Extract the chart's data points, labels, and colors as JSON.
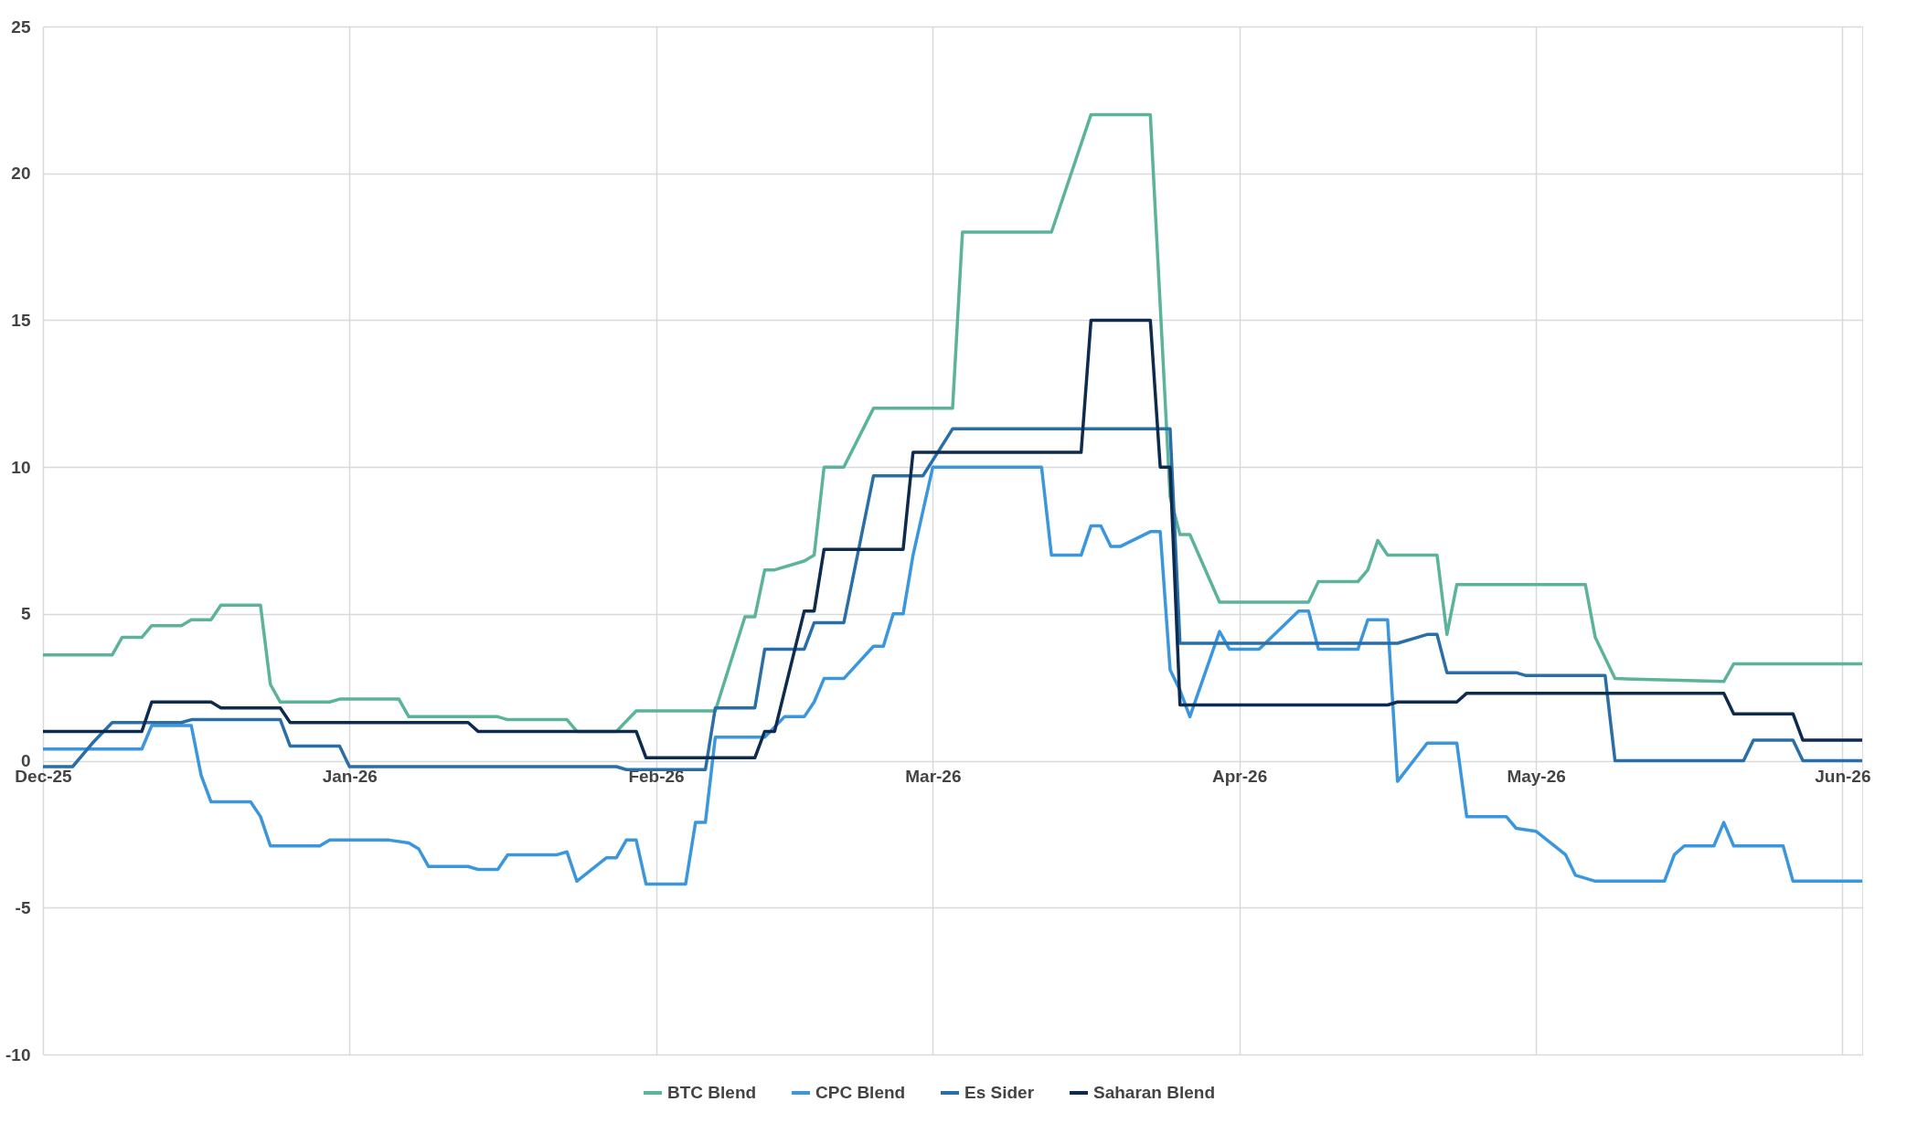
{
  "chart_data": {
    "type": "line",
    "xlim": [
      "2025-12-01",
      "2026-06-03"
    ],
    "xticks": [
      {
        "value": "2025-12-01",
        "label": "Dec-25"
      },
      {
        "value": "2026-01-01",
        "label": "Jan-26"
      },
      {
        "value": "2026-02-01",
        "label": "Feb-26"
      },
      {
        "value": "2026-03-01",
        "label": "Mar-26"
      },
      {
        "value": "2026-04-01",
        "label": "Apr-26"
      },
      {
        "value": "2026-05-01",
        "label": "May-26"
      },
      {
        "value": "2026-06-01",
        "label": "Jun-26"
      }
    ],
    "ylim": [
      -10,
      25
    ],
    "yticks": [
      -10,
      -5,
      0,
      5,
      10,
      15,
      20,
      25
    ],
    "grid": true,
    "legend": "bottom",
    "line_style": "solid",
    "marker": "none",
    "series": [
      {
        "name": "BTC Blend",
        "color": "#5bb39a",
        "x": [
          "2025-12-01",
          "2025-12-08",
          "2025-12-09",
          "2025-12-11",
          "2025-12-12",
          "2025-12-15",
          "2025-12-16",
          "2025-12-18",
          "2025-12-19",
          "2025-12-23",
          "2025-12-24",
          "2025-12-25",
          "2025-12-30",
          "2025-12-31",
          "2026-01-06",
          "2026-01-07",
          "2026-01-16",
          "2026-01-17",
          "2026-01-23",
          "2026-01-24",
          "2026-01-28",
          "2026-01-30",
          "2026-02-07",
          "2026-02-10",
          "2026-02-11",
          "2026-02-12",
          "2026-02-13",
          "2026-02-16",
          "2026-02-17",
          "2026-02-18",
          "2026-02-20",
          "2026-02-23",
          "2026-03-03",
          "2026-03-04",
          "2026-03-13",
          "2026-03-17",
          "2026-03-23",
          "2026-03-25",
          "2026-03-26",
          "2026-03-27",
          "2026-03-30",
          "2026-04-08",
          "2026-04-09",
          "2026-04-13",
          "2026-04-14",
          "2026-04-15",
          "2026-04-16",
          "2026-04-21",
          "2026-04-22",
          "2026-04-23",
          "2026-05-06",
          "2026-05-07",
          "2026-05-09",
          "2026-05-20",
          "2026-05-21",
          "2026-06-03"
        ],
        "values": [
          3.6,
          3.6,
          4.2,
          4.2,
          4.6,
          4.6,
          4.8,
          4.8,
          5.3,
          5.3,
          2.6,
          2.0,
          2.0,
          2.1,
          2.1,
          1.5,
          1.5,
          1.4,
          1.4,
          1.0,
          1.0,
          1.7,
          1.7,
          4.9,
          4.9,
          6.5,
          6.5,
          6.8,
          7.0,
          10,
          10,
          12,
          12,
          18,
          18,
          22,
          22,
          9,
          7.7,
          7.7,
          5.4,
          5.4,
          6.1,
          6.1,
          6.5,
          7.5,
          7.0,
          7.0,
          4.3,
          6.0,
          6.0,
          4.2,
          2.8,
          2.7,
          3.3,
          3.3
        ]
      },
      {
        "name": "CPC Blend",
        "color": "#3a96dd",
        "x": [
          "2025-12-01",
          "2025-12-11",
          "2025-12-12",
          "2025-12-16",
          "2025-12-17",
          "2025-12-18",
          "2025-12-22",
          "2025-12-23",
          "2025-12-24",
          "2025-12-29",
          "2025-12-30",
          "2026-01-05",
          "2026-01-07",
          "2026-01-08",
          "2026-01-09",
          "2026-01-13",
          "2026-01-14",
          "2026-01-16",
          "2026-01-17",
          "2026-01-22",
          "2026-01-23",
          "2026-01-24",
          "2026-01-27",
          "2026-01-28",
          "2026-01-29",
          "2026-01-30",
          "2026-01-31",
          "2026-02-04",
          "2026-02-05",
          "2026-02-06",
          "2026-02-07",
          "2026-02-12",
          "2026-02-14",
          "2026-02-16",
          "2026-02-17",
          "2026-02-18",
          "2026-02-20",
          "2026-02-23",
          "2026-02-24",
          "2026-02-25",
          "2026-02-26",
          "2026-02-27",
          "2026-03-01",
          "2026-03-12",
          "2026-03-13",
          "2026-03-16",
          "2026-03-17",
          "2026-03-18",
          "2026-03-19",
          "2026-03-20",
          "2026-03-23",
          "2026-03-24",
          "2026-03-25",
          "2026-03-26",
          "2026-03-27",
          "2026-03-30",
          "2026-03-31",
          "2026-04-03",
          "2026-04-07",
          "2026-04-08",
          "2026-04-09",
          "2026-04-13",
          "2026-04-14",
          "2026-04-16",
          "2026-04-17",
          "2026-04-20",
          "2026-04-23",
          "2026-04-24",
          "2026-04-28",
          "2026-04-29",
          "2026-05-01",
          "2026-05-04",
          "2026-05-05",
          "2026-05-07",
          "2026-05-14",
          "2026-05-15",
          "2026-05-16",
          "2026-05-19",
          "2026-05-20",
          "2026-05-21",
          "2026-05-26",
          "2026-05-27",
          "2026-06-03"
        ],
        "values": [
          0.4,
          0.4,
          1.2,
          1.2,
          -0.5,
          -1.4,
          -1.4,
          -1.9,
          -2.9,
          -2.9,
          -2.7,
          -2.7,
          -2.8,
          -3.0,
          -3.6,
          -3.6,
          -3.7,
          -3.7,
          -3.2,
          -3.2,
          -3.1,
          -4.1,
          -3.3,
          -3.3,
          -2.7,
          -2.7,
          -4.2,
          -4.2,
          -2.1,
          -2.1,
          0.8,
          0.8,
          1.5,
          1.5,
          2.0,
          2.8,
          2.8,
          3.9,
          3.9,
          5.0,
          5.0,
          7.0,
          10,
          10,
          7.0,
          7.0,
          8.0,
          8.0,
          7.3,
          7.3,
          7.8,
          7.8,
          3.1,
          2.4,
          1.5,
          4.4,
          3.8,
          3.8,
          5.1,
          5.1,
          3.8,
          3.8,
          4.8,
          4.8,
          -0.7,
          0.6,
          0.6,
          -1.9,
          -1.9,
          -2.3,
          -2.4,
          -3.2,
          -3.9,
          -4.1,
          -4.1,
          -3.2,
          -2.9,
          -2.9,
          -2.1,
          -2.9,
          -2.9,
          -4.1,
          -4.1
        ]
      },
      {
        "name": "Es Sider",
        "color": "#2a6ea8",
        "x": [
          "2025-12-01",
          "2025-12-04",
          "2025-12-06",
          "2025-12-08",
          "2025-12-15",
          "2025-12-16",
          "2025-12-25",
          "2025-12-26",
          "2025-12-31",
          "2026-01-01",
          "2026-01-28",
          "2026-01-29",
          "2026-02-06",
          "2026-02-07",
          "2026-02-11",
          "2026-02-12",
          "2026-02-16",
          "2026-02-17",
          "2026-02-20",
          "2026-02-23",
          "2026-02-28",
          "2026-03-03",
          "2026-03-25",
          "2026-03-26",
          "2026-04-17",
          "2026-04-20",
          "2026-04-21",
          "2026-04-22",
          "2026-04-29",
          "2026-04-30",
          "2026-05-08",
          "2026-05-09",
          "2026-05-22",
          "2026-05-23",
          "2026-05-27",
          "2026-05-28",
          "2026-06-03"
        ],
        "values": [
          -0.2,
          -0.2,
          0.6,
          1.3,
          1.3,
          1.4,
          1.4,
          0.5,
          0.5,
          -0.2,
          -0.2,
          -0.3,
          -0.3,
          1.8,
          1.8,
          3.8,
          3.8,
          4.7,
          4.7,
          9.7,
          9.7,
          11.3,
          11.3,
          4.0,
          4.0,
          4.3,
          4.3,
          3.0,
          3.0,
          2.9,
          2.9,
          0.0,
          0.0,
          0.7,
          0.7,
          0.0,
          0.0
        ]
      },
      {
        "name": "Saharan Blend",
        "color": "#0d2b4e",
        "x": [
          "2025-12-01",
          "2025-12-11",
          "2025-12-12",
          "2025-12-18",
          "2025-12-19",
          "2025-12-25",
          "2025-12-26",
          "2026-01-13",
          "2026-01-14",
          "2026-01-30",
          "2026-01-31",
          "2026-02-11",
          "2026-02-12",
          "2026-02-13",
          "2026-02-16",
          "2026-02-17",
          "2026-02-18",
          "2026-02-26",
          "2026-02-27",
          "2026-03-16",
          "2026-03-17",
          "2026-03-23",
          "2026-03-24",
          "2026-03-25",
          "2026-03-26",
          "2026-04-16",
          "2026-04-17",
          "2026-04-23",
          "2026-04-24",
          "2026-05-20",
          "2026-05-21",
          "2026-05-27",
          "2026-05-28",
          "2026-06-03"
        ],
        "values": [
          1.0,
          1.0,
          2.0,
          2.0,
          1.8,
          1.8,
          1.3,
          1.3,
          1.0,
          1.0,
          0.1,
          0.1,
          1.0,
          1.0,
          5.1,
          5.1,
          7.2,
          7.2,
          10.5,
          10.5,
          15.0,
          15.0,
          10.0,
          10.0,
          1.9,
          1.9,
          2.0,
          2.0,
          2.3,
          2.3,
          1.6,
          1.6,
          0.7,
          0.7
        ]
      }
    ]
  }
}
